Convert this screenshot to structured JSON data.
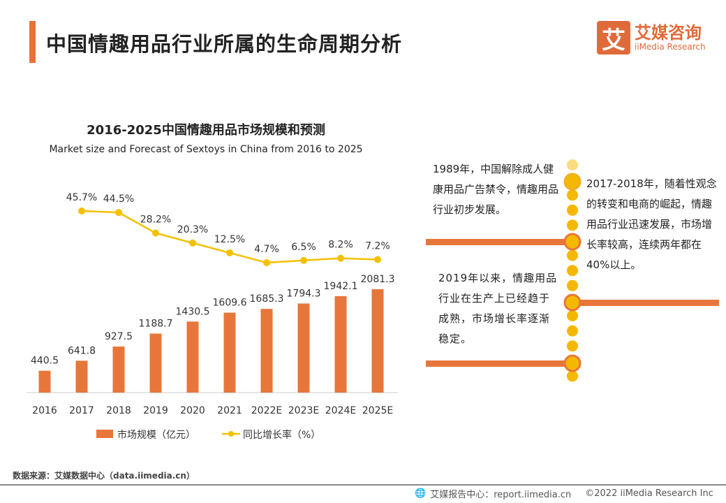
{
  "header": {
    "title": "中国情趣用品行业所属的生命周期分析",
    "logo_mark": "艾",
    "logo_cn": "艾媒咨询",
    "logo_en": "iiMedia Research"
  },
  "chart_data": {
    "type": "bar+line",
    "title": "2016-2025中国情趣用品市场规模和预测",
    "subtitle": "Market size and Forecast of Sextoys in China from 2016 to 2025",
    "categories": [
      "2016",
      "2017",
      "2018",
      "2019",
      "2020",
      "2021",
      "2022E",
      "2023E",
      "2024E",
      "2025E"
    ],
    "series": [
      {
        "name": "市场规模（亿元）",
        "type": "bar",
        "color": "#e8763a",
        "values": [
          440.5,
          641.8,
          927.5,
          1188.7,
          1430.5,
          1609.6,
          1685.3,
          1794.3,
          1942.1,
          2081.3
        ]
      },
      {
        "name": "同比增长率（%）",
        "type": "line",
        "color": "#f5c000",
        "values": [
          null,
          45.7,
          44.5,
          28.2,
          20.3,
          12.5,
          4.7,
          6.5,
          8.2,
          7.2
        ],
        "labels": [
          "",
          "45.7%",
          "44.5%",
          "28.2%",
          "20.3%",
          "12.5%",
          "4.7%",
          "6.5%",
          "8.2%",
          "7.2%"
        ]
      }
    ],
    "legend": "bottom",
    "grid": false
  },
  "timeline": {
    "notes": [
      "1989年，中国解除成人健康用品广告禁令，情趣用品行业初步发展。",
      "2017-2018年，随着性观念的转变和电商的崛起，情趣用品行业迅速发展，市场增长率较高，连续两年都在40%以上。",
      "2019年以来，情趣用品行业在生产上已经趋于成熟，市场增长率逐渐稳定。"
    ],
    "colors": {
      "line": "#e8763a",
      "dot": "#f5b800"
    }
  },
  "footer": {
    "source": "数据来源：艾媒数据中心（data.iimedia.cn）",
    "report": "艾媒报告中心：report.iimedia.cn",
    "copyright": "©2022  iiMedia Research  Inc"
  }
}
